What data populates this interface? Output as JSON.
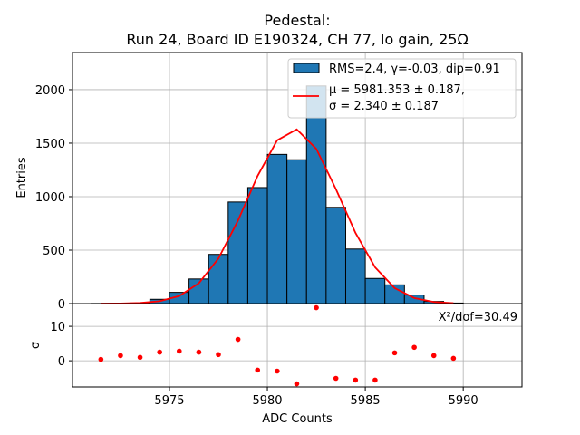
{
  "chart_data": [
    {
      "panel": "main",
      "type": "bar",
      "title_lines": [
        "Pedestal:",
        "Run 24, Board ID E190324, CH 77, lo gain, 25Ω"
      ],
      "xlabel": "",
      "ylabel": "Entries",
      "xlim": [
        5970.05,
        5993.0
      ],
      "ylim": [
        0,
        2347
      ],
      "grid": true,
      "yticks": [
        0,
        500,
        1000,
        1500,
        2000
      ],
      "ytick_labels": [
        "0",
        "500",
        "1000",
        "1500",
        "2000"
      ],
      "xticks": [
        5975,
        5980,
        5985,
        5990
      ],
      "bin_edges": [
        5971,
        5972,
        5973,
        5974,
        5975,
        5976,
        5977,
        5978,
        5979,
        5980,
        5981,
        5982,
        5983,
        5984,
        5985,
        5986,
        5987,
        5988,
        5989,
        5990
      ],
      "series": [
        {
          "name": "RMS=2.4, γ=-0.03, dip=0.91",
          "kind": "histogram",
          "color": "#1f77b4",
          "edgecolor": "#000000",
          "values": [
            1,
            2,
            5,
            40,
            105,
            230,
            460,
            950,
            1085,
            1395,
            1345,
            2035,
            900,
            510,
            235,
            175,
            80,
            20,
            5
          ]
        },
        {
          "name_lines": [
            "μ = 5981.353 ± 0.187,",
            "σ = 2.340 ± 0.187"
          ],
          "kind": "line",
          "color": "#ff0000",
          "x": [
            5971.5,
            5972.5,
            5973.5,
            5974.5,
            5975.5,
            5976.5,
            5977.5,
            5978.5,
            5979.5,
            5980.5,
            5981.5,
            5982.5,
            5983.5,
            5984.5,
            5985.5,
            5986.5,
            5987.5,
            5988.5,
            5989.5
          ],
          "values": [
            0.2,
            1.3,
            6,
            22,
            71,
            190,
            421,
            776,
            1193,
            1527,
            1629,
            1447,
            1071,
            661,
            339,
            145,
            52,
            15,
            4
          ]
        }
      ],
      "legend": {
        "placement": "top-right",
        "entries": [
          {
            "label": "RMS=2.4, γ=-0.03, dip=0.91",
            "marker": "patch",
            "color": "#1f77b4"
          },
          {
            "label_lines": [
              "μ = 5981.353 ± 0.187,",
              "σ = 2.340 ± 0.187"
            ],
            "marker": "line",
            "color": "#ff0000"
          }
        ]
      }
    },
    {
      "panel": "residual",
      "type": "scatter",
      "xlabel": "ADC Counts",
      "ylabel": "σ",
      "xlim": [
        5970.05,
        5993.0
      ],
      "ylim": [
        -7.6,
        16.6
      ],
      "grid": true,
      "yticks": [
        0,
        10
      ],
      "ytick_labels": [
        "0",
        "10"
      ],
      "xticks": [
        5975,
        5980,
        5985,
        5990
      ],
      "xtick_labels": [
        "5975",
        "5980",
        "5985",
        "5990"
      ],
      "annotation": "X²/dof=30.49",
      "series": [
        {
          "name": "residuals",
          "color": "#ff0000",
          "x": [
            5971.5,
            5972.5,
            5973.5,
            5974.5,
            5975.5,
            5976.5,
            5977.5,
            5978.5,
            5979.5,
            5980.5,
            5981.5,
            5982.5,
            5983.5,
            5984.5,
            5985.5,
            5986.5,
            5987.5,
            5988.5,
            5989.5
          ],
          "values": [
            0.4,
            1.5,
            1.0,
            2.5,
            2.8,
            2.5,
            1.8,
            6.2,
            -2.7,
            -3.0,
            -6.7,
            15.4,
            -5.1,
            -5.6,
            -5.6,
            2.3,
            3.9,
            1.5,
            0.7
          ]
        }
      ]
    }
  ]
}
